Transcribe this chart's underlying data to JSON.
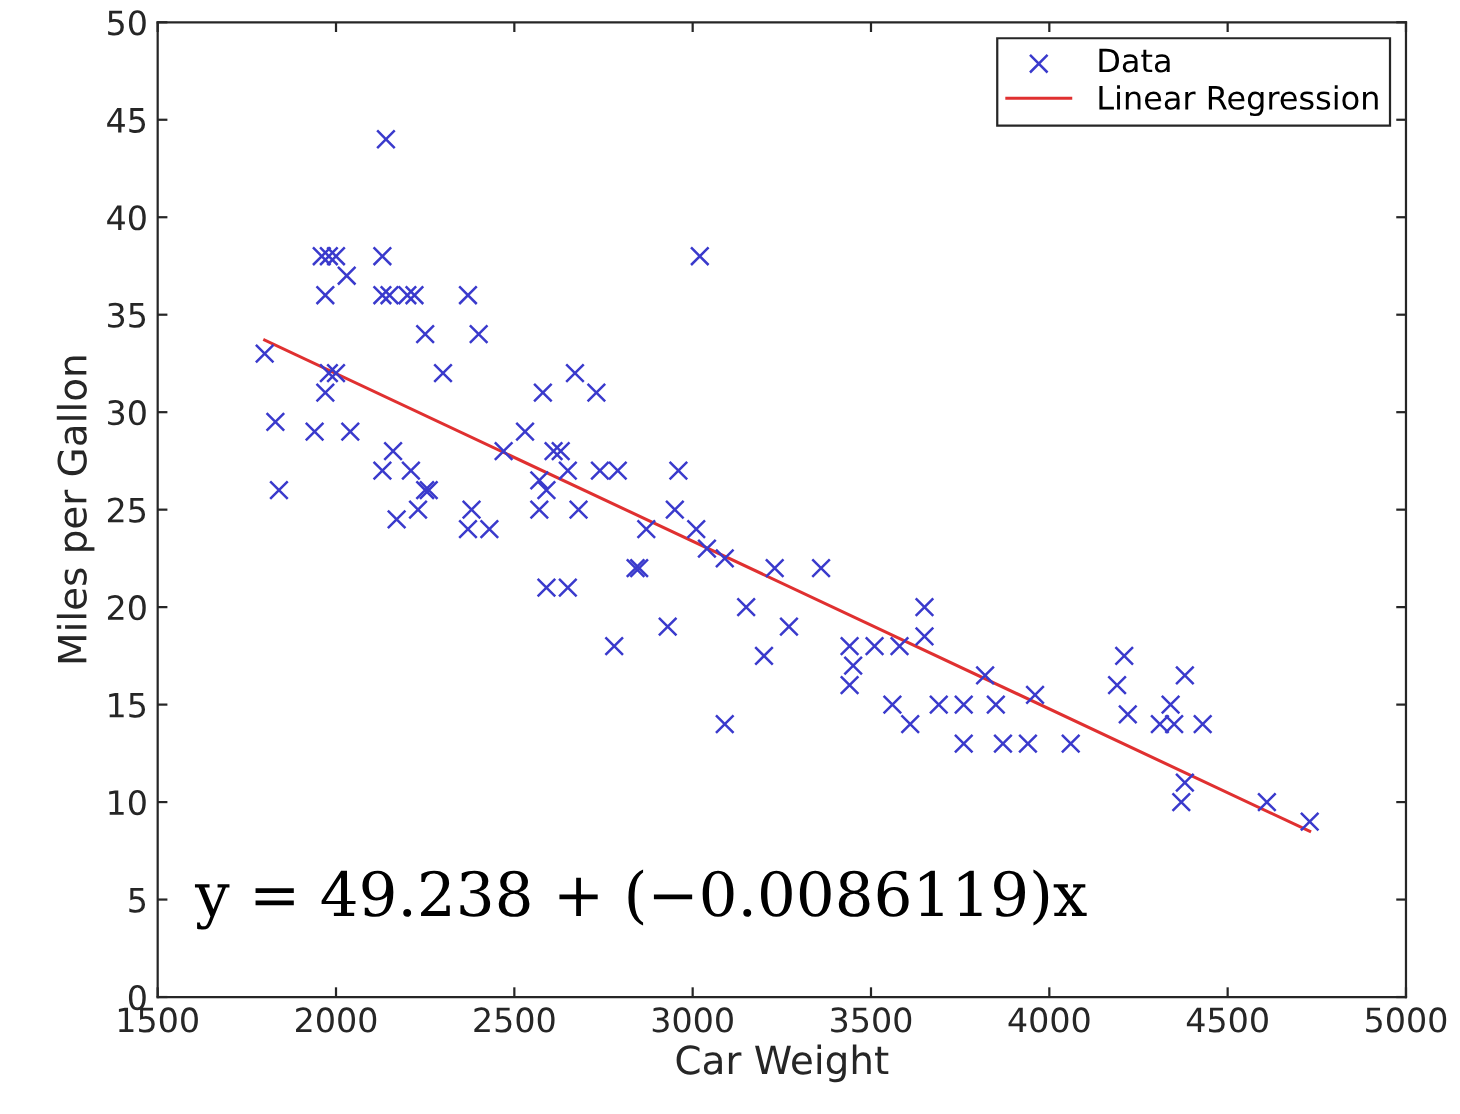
{
  "chart_data": {
    "type": "scatter",
    "xlabel": "Car Weight",
    "ylabel": "Miles per Gallon",
    "xlim": [
      1500,
      5000
    ],
    "xticks": [
      1500,
      2000,
      2500,
      3000,
      3500,
      4000,
      4500,
      5000
    ],
    "ylim": [
      0,
      50
    ],
    "yticks": [
      0,
      5,
      10,
      15,
      20,
      25,
      30,
      35,
      40,
      45,
      50
    ],
    "grid": false,
    "legend": "top right",
    "annotations": [
      "y = 49.238 + (−0.0086119)x"
    ],
    "series": [
      {
        "name": "Data",
        "marker": "cross",
        "color": "#3a3acc",
        "x": [
          1800,
          1830,
          1840,
          1940,
          1960,
          1980,
          1970,
          1980,
          1970,
          2000,
          2000,
          2030,
          2040,
          2130,
          2140,
          2130,
          2150,
          2130,
          2160,
          2170,
          2200,
          2220,
          2210,
          2230,
          2250,
          2260,
          2250,
          2300,
          2370,
          2400,
          2380,
          2370,
          2430,
          2470,
          2530,
          2570,
          2580,
          2570,
          2590,
          2590,
          2610,
          2630,
          2650,
          2650,
          2670,
          2680,
          2730,
          2740,
          2790,
          2780,
          2840,
          2850,
          2870,
          2930,
          2950,
          2960,
          3010,
          3020,
          3040,
          3090,
          3090,
          3150,
          3200,
          3230,
          3270,
          3360,
          3440,
          3440,
          3450,
          3510,
          3560,
          3580,
          3610,
          3650,
          3650,
          3690,
          3760,
          3760,
          3820,
          3850,
          3870,
          3940,
          3960,
          4060,
          4190,
          4210,
          4220,
          4310,
          4340,
          4350,
          4380,
          4380,
          4370,
          4430,
          4610,
          4730
        ],
        "values": [
          33,
          29.5,
          26,
          29,
          38,
          38,
          36,
          32,
          31,
          32,
          38,
          37,
          29,
          38,
          44,
          36,
          36,
          27,
          28,
          24.5,
          36,
          36,
          27,
          25,
          26,
          26,
          34,
          32,
          36,
          34,
          25,
          24,
          24,
          28,
          29,
          26.5,
          31,
          25,
          26,
          21,
          28,
          28,
          27,
          21,
          32,
          25,
          31,
          27,
          27,
          18,
          22,
          22,
          24,
          19,
          25,
          27,
          24,
          38,
          23,
          22.5,
          14,
          20,
          17.5,
          22,
          19,
          22,
          18,
          16,
          17,
          18,
          15,
          18,
          14,
          18.5,
          20,
          15,
          15,
          13,
          16.5,
          15,
          13,
          13,
          15.5,
          13,
          16,
          17.5,
          14.5,
          14,
          15,
          14,
          16.5,
          11,
          10,
          14,
          10,
          9
        ]
      },
      {
        "name": "Linear Regression",
        "type": "line",
        "marker": "none",
        "line_style": "solid",
        "color": "#e03030",
        "x": [
          1800,
          4730
        ],
        "values": [
          33.7,
          8.5
        ]
      }
    ]
  }
}
